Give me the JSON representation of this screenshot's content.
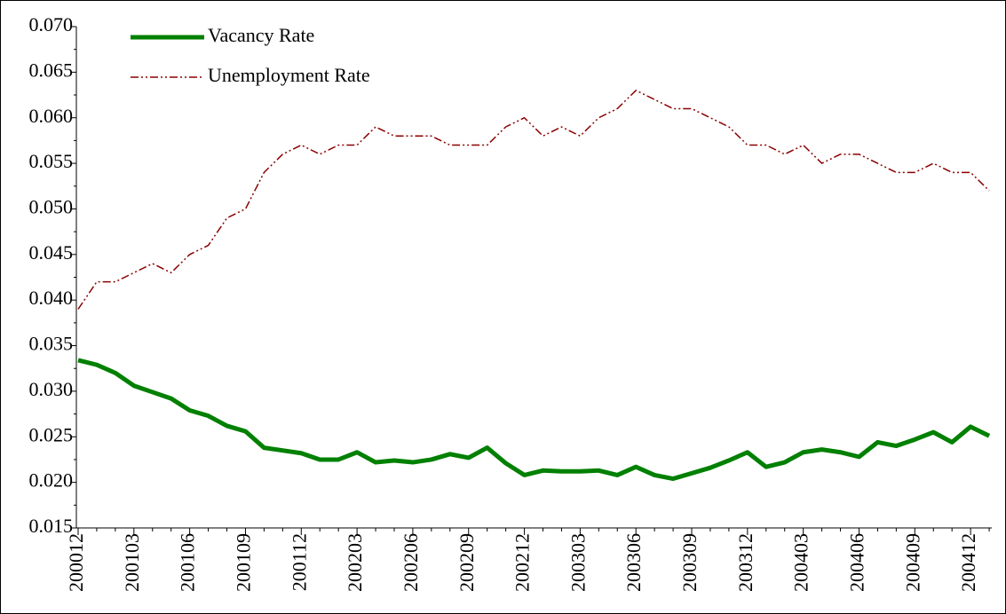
{
  "chart_data": {
    "type": "line",
    "categories": [
      "200012",
      null,
      null,
      "200103",
      null,
      null,
      "200106",
      null,
      null,
      "200109",
      null,
      null,
      "200112",
      null,
      null,
      "200203",
      null,
      null,
      "200206",
      null,
      null,
      "200209",
      null,
      null,
      "200212",
      null,
      null,
      "200303",
      null,
      null,
      "200306",
      null,
      null,
      "200309",
      null,
      null,
      "200312",
      null,
      null,
      "200403",
      null,
      null,
      "200406",
      null,
      null,
      "200409",
      null,
      null,
      "200412",
      null
    ],
    "series": [
      {
        "name": "Vacancy Rate",
        "color": "#008000",
        "style": "solid",
        "values": [
          0.0334,
          0.0329,
          0.032,
          0.0306,
          0.0299,
          0.0292,
          0.0279,
          0.0273,
          0.0262,
          0.0256,
          0.0238,
          0.0235,
          0.0232,
          0.0225,
          0.0225,
          0.0233,
          0.0222,
          0.0224,
          0.0222,
          0.0225,
          0.0231,
          0.0227,
          0.0238,
          0.0221,
          0.0208,
          0.0213,
          0.0212,
          0.0212,
          0.0213,
          0.0208,
          0.0217,
          0.0208,
          0.0204,
          0.021,
          0.0216,
          0.0224,
          0.0233,
          0.0217,
          0.0222,
          0.0233,
          0.0236,
          0.0233,
          0.0228,
          0.0244,
          0.024,
          0.0247,
          0.0255,
          0.0244,
          0.0261,
          0.0251
        ]
      },
      {
        "name": "Unemployment Rate",
        "color": "#8b0000",
        "style": "dash-dot-dot",
        "values": [
          0.039,
          0.042,
          0.042,
          0.043,
          0.044,
          0.043,
          0.045,
          0.046,
          0.049,
          0.05,
          0.054,
          0.056,
          0.057,
          0.056,
          0.057,
          0.057,
          0.059,
          0.058,
          0.058,
          0.058,
          0.057,
          0.057,
          0.057,
          0.059,
          0.06,
          0.058,
          0.059,
          0.058,
          0.06,
          0.061,
          0.063,
          0.062,
          0.061,
          0.061,
          0.06,
          0.059,
          0.057,
          0.057,
          0.056,
          0.057,
          0.055,
          0.056,
          0.056,
          0.055,
          0.054,
          0.054,
          0.055,
          0.054,
          0.054,
          0.052
        ]
      }
    ],
    "ylim": [
      0.015,
      0.07
    ],
    "yticks": [
      0.015,
      {
        "value": 0.02,
        "label": "0.020"
      },
      0.025,
      {
        "value": 0.03,
        "label": "0.030"
      },
      0.035,
      {
        "value": 0.04,
        "label": "0.040"
      },
      0.045,
      {
        "value": 0.05,
        "label": "0.050"
      },
      0.055,
      {
        "value": 0.06,
        "label": "0.060"
      },
      0.065,
      {
        "value": 0.07,
        "label": "0.070"
      }
    ],
    "grid": false,
    "legend": "upper left"
  }
}
